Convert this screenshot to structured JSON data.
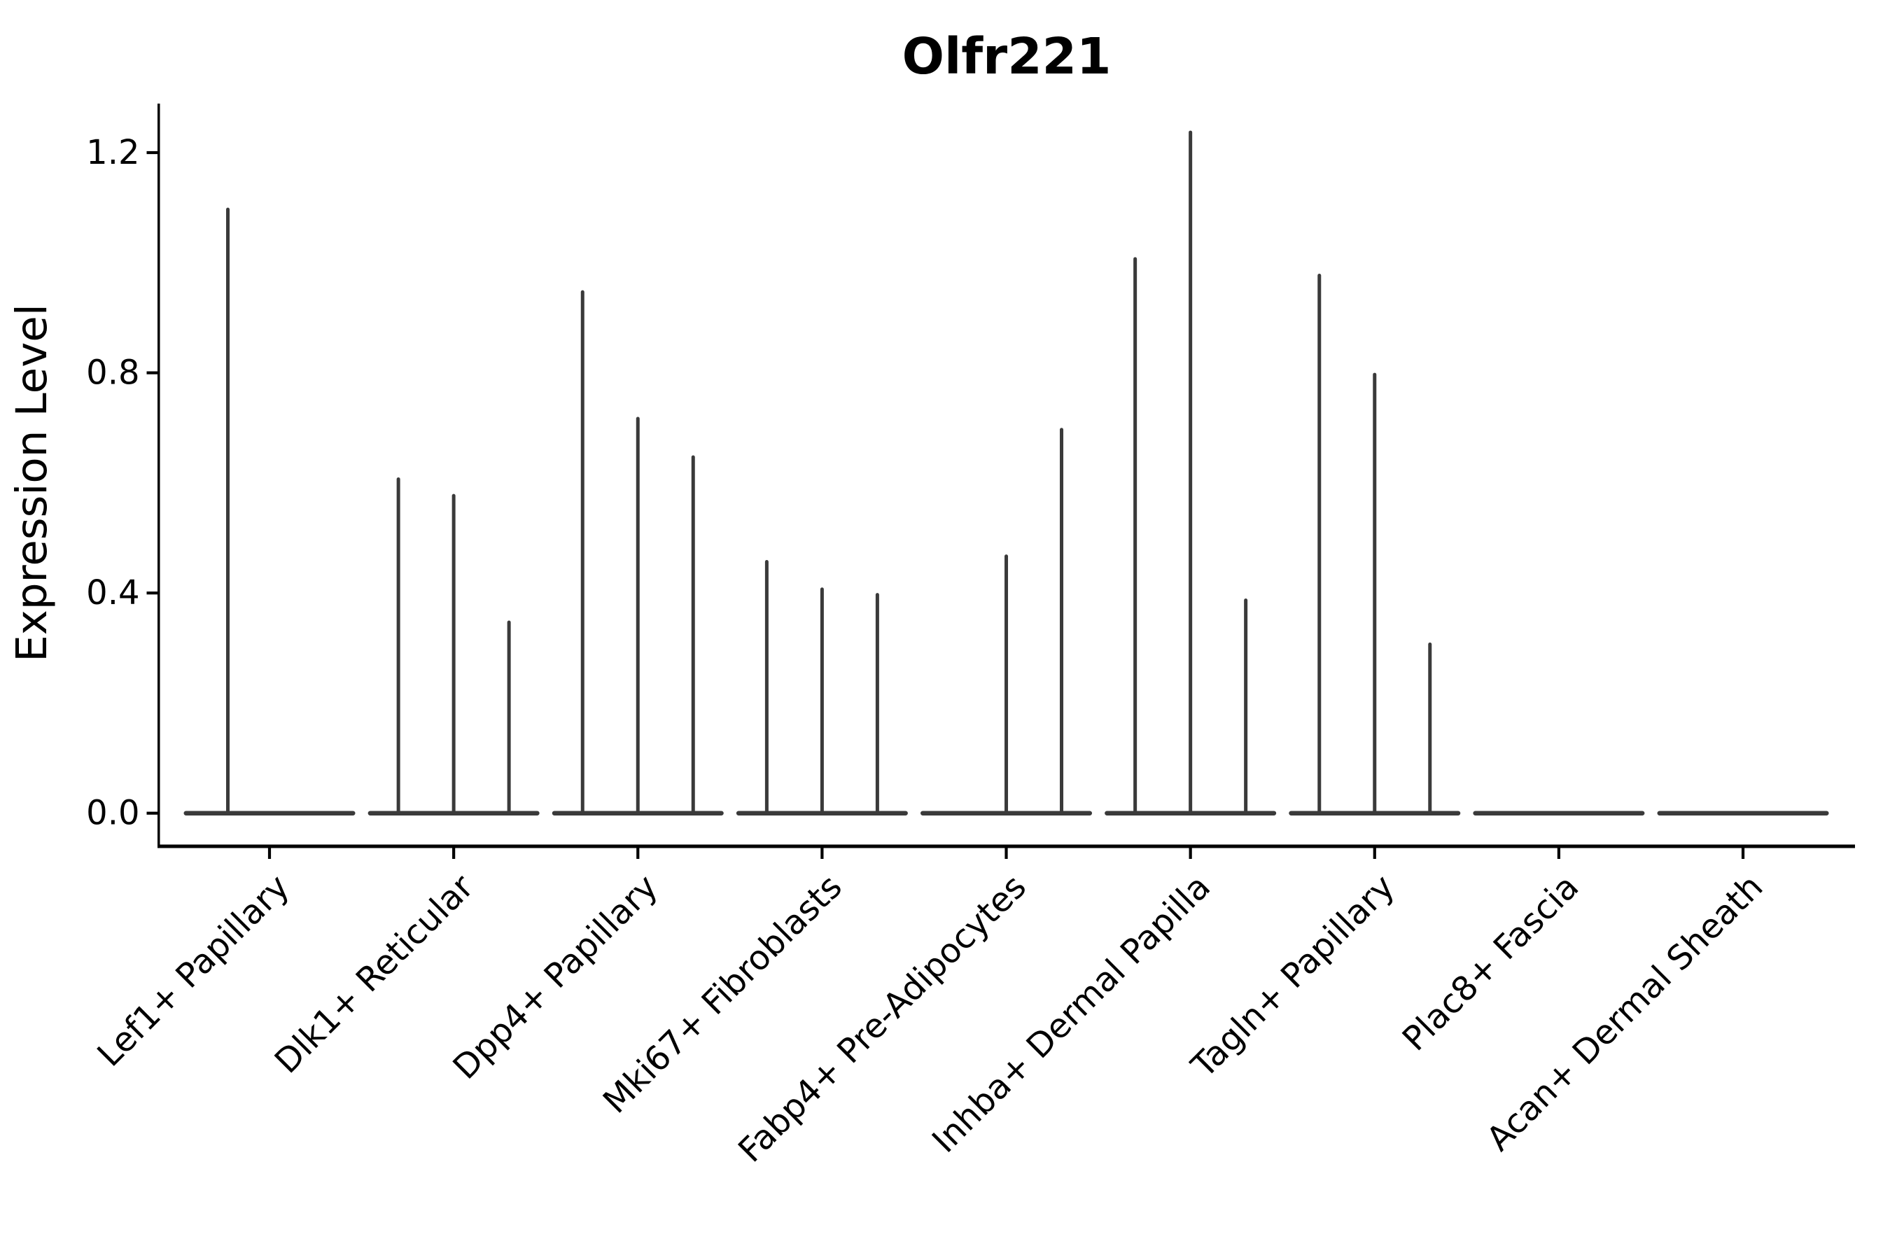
{
  "chart_data": {
    "type": "violin",
    "title": "Olfr221",
    "xlabel": "",
    "ylabel": "Expression Level",
    "yticks_values": [
      0.0,
      0.4,
      0.8,
      1.2
    ],
    "yticks_labels": [
      "0.0",
      "0.4",
      "0.8",
      "1.2"
    ],
    "ylim": [
      -0.06,
      1.29
    ],
    "grid": false,
    "legend": "none",
    "colors": {
      "violin": "#3a3a3a",
      "axis": "#000000",
      "text": "#000000",
      "background": "#ffffff"
    },
    "categories": [
      "Lef1+ Papillary",
      "Dlk1+ Reticular",
      "Dpp4+ Papillary",
      "Mki67+ Fibroblasts",
      "Fabp4+ Pre-Adipocytes",
      "Inhba+ Dermal Papilla",
      "Tagln+ Papillary",
      "Plac8+ Fascia",
      "Acan+ Dermal Sheath"
    ],
    "series": [
      {
        "name": "Lef1+ Papillary",
        "baseline_value": 0,
        "spikes": [
          {
            "dx": -59.5,
            "max": 1.1
          }
        ]
      },
      {
        "name": "Dlk1+ Reticular",
        "baseline_value": 0,
        "spikes": [
          {
            "dx": -79,
            "max": 0.61
          },
          {
            "dx": 0,
            "max": 0.58
          },
          {
            "dx": 79,
            "max": 0.35
          }
        ]
      },
      {
        "name": "Dpp4+ Papillary",
        "baseline_value": 0,
        "spikes": [
          {
            "dx": -79,
            "max": 0.95
          },
          {
            "dx": 0,
            "max": 0.72
          },
          {
            "dx": 79,
            "max": 0.65
          }
        ]
      },
      {
        "name": "Mki67+ Fibroblasts",
        "baseline_value": 0,
        "spikes": [
          {
            "dx": -79,
            "max": 0.46
          },
          {
            "dx": 0,
            "max": 0.41
          },
          {
            "dx": 79,
            "max": 0.4
          }
        ]
      },
      {
        "name": "Fabp4+ Pre-Adipocytes",
        "baseline_value": 0,
        "spikes": [
          {
            "dx": 0,
            "max": 0.47
          },
          {
            "dx": 79,
            "max": 0.7
          }
        ]
      },
      {
        "name": "Inhba+ Dermal Papilla",
        "baseline_value": 0,
        "spikes": [
          {
            "dx": -79,
            "max": 1.01
          },
          {
            "dx": 0,
            "max": 1.24
          },
          {
            "dx": 79,
            "max": 0.39
          }
        ]
      },
      {
        "name": "Tagln+ Papillary",
        "baseline_value": 0,
        "spikes": [
          {
            "dx": -79,
            "max": 0.98
          },
          {
            "dx": 0,
            "max": 0.8
          },
          {
            "dx": 79,
            "max": 0.31
          }
        ]
      },
      {
        "name": "Plac8+ Fascia",
        "baseline_value": 0,
        "spikes": []
      },
      {
        "name": "Acan+ Dermal Sheath",
        "baseline_value": 0,
        "spikes": []
      }
    ]
  }
}
